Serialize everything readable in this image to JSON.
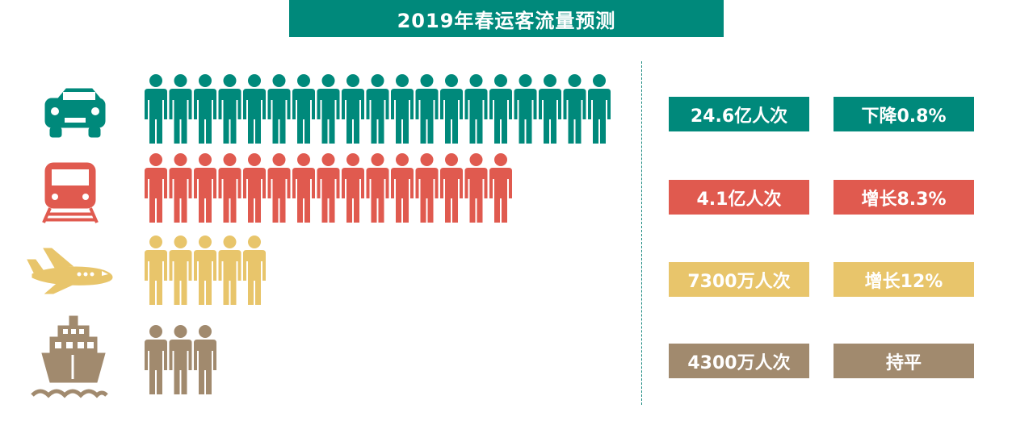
{
  "title": "2019年春运客流量预测",
  "colors": {
    "title_bg": "#00897B",
    "car": "#00897B",
    "train": "#E05A4F",
    "plane": "#E8C56B",
    "ship": "#A18A6E"
  },
  "chart_data": {
    "type": "pictogram",
    "title": "2019年春运客流量预测",
    "categories": [
      "car-icon",
      "train-icon",
      "plane-icon",
      "ship-icon"
    ],
    "series": [
      {
        "icon": "car-icon",
        "color": "#00897B",
        "people_icons": 19,
        "volume_label": "24.6亿人次",
        "change_label": "下降0.8%"
      },
      {
        "icon": "train-icon",
        "color": "#E05A4F",
        "people_icons": 15,
        "volume_label": "4.1亿人次",
        "change_label": "增长8.3%"
      },
      {
        "icon": "plane-icon",
        "color": "#E8C56B",
        "people_icons": 5,
        "volume_label": "7300万人次",
        "change_label": "增长12%"
      },
      {
        "icon": "ship-icon",
        "color": "#A18A6E",
        "people_icons": 3,
        "volume_label": "4300万人次",
        "change_label": "持平"
      }
    ]
  }
}
